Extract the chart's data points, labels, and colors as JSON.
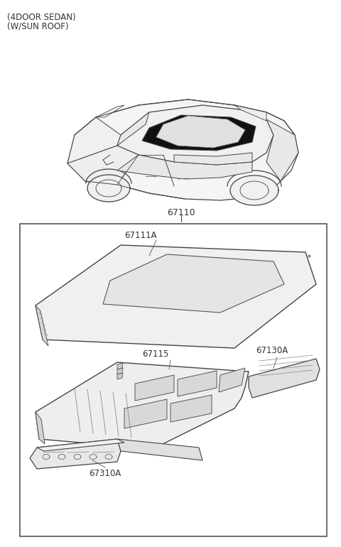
{
  "title_line1": "(4DOOR SEDAN)",
  "title_line2": "(W/SUN ROOF)",
  "bg": "#ffffff",
  "lc": "#444444",
  "tc": "#333333",
  "figsize": [
    4.8,
    7.7
  ],
  "dpi": 100,
  "label_67110": "67110",
  "label_67111A": "67111A",
  "label_67115": "67115",
  "label_67130A": "67130A",
  "label_67310A": "67310A"
}
